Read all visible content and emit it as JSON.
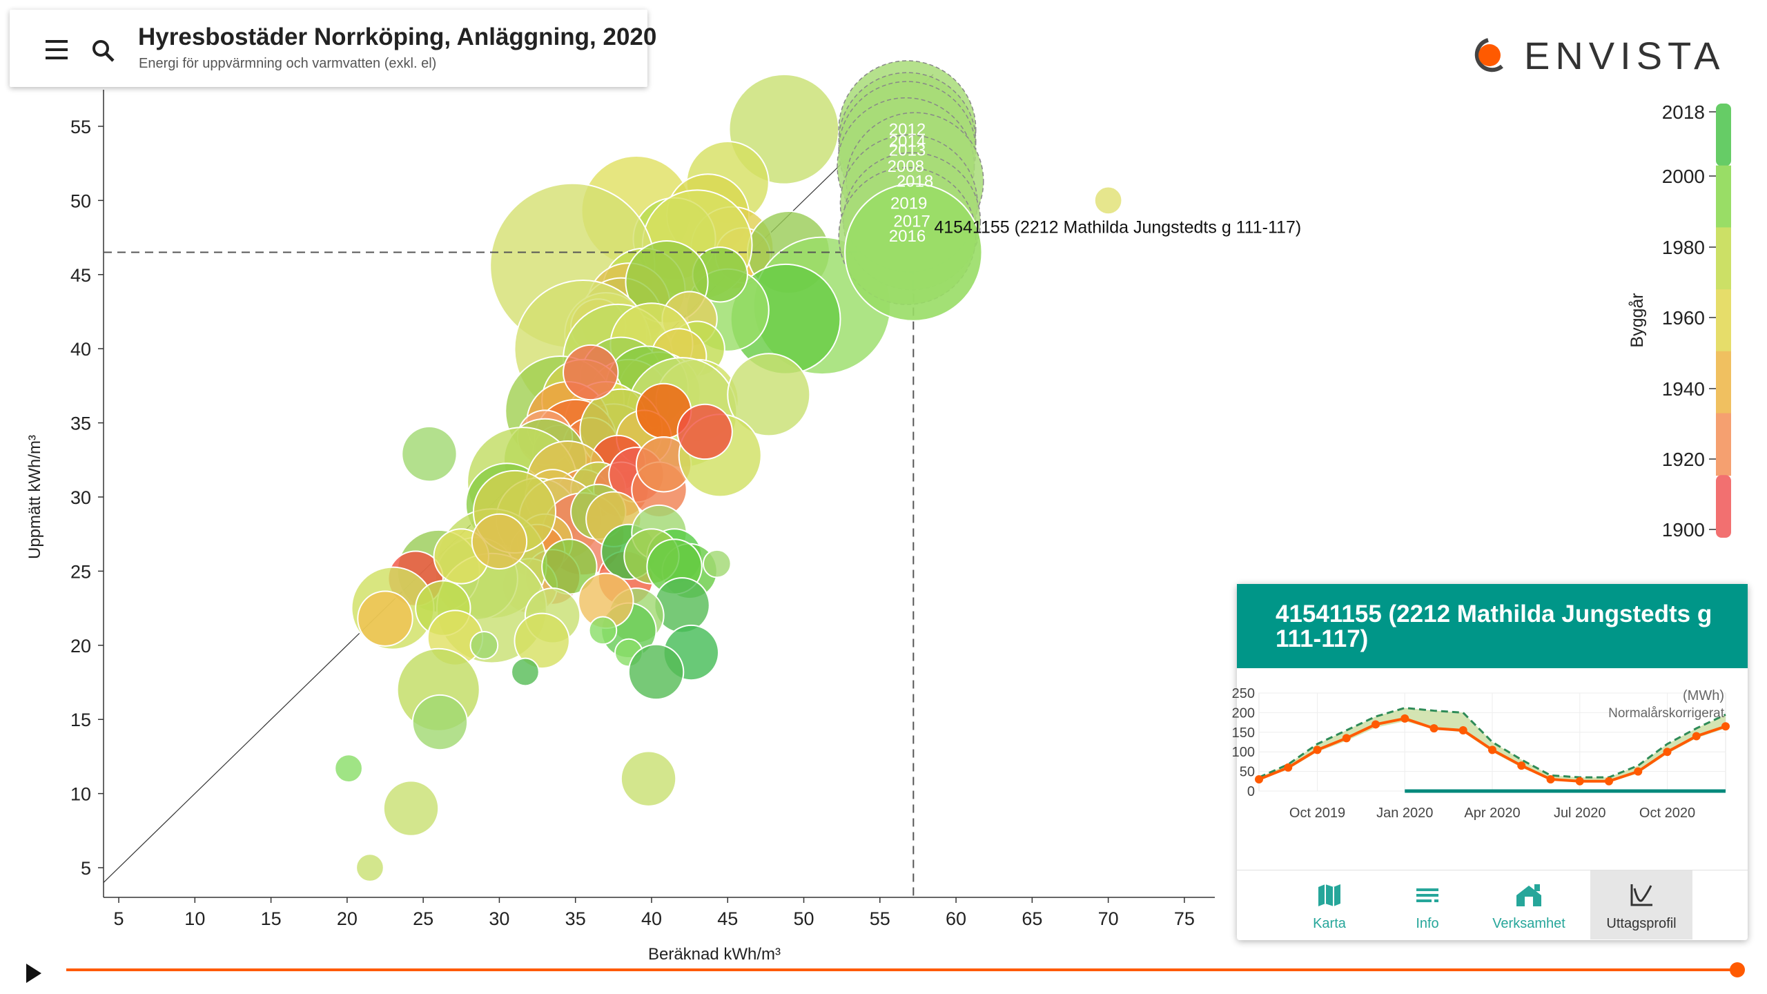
{
  "header": {
    "title": "Hyresbostäder Norrköping, Anläggning, 2020",
    "subtitle": "Energi för uppvärmning och varmvatten (exkl. el)"
  },
  "logo": {
    "text": "ENVISTA",
    "accent": "#ff5a00"
  },
  "chart_data": {
    "type": "scatter",
    "xlabel": "Beräknad kWh/m³",
    "ylabel": "Uppmätt kWh/m³",
    "xlim": [
      4,
      77
    ],
    "ylim": [
      3,
      57
    ],
    "xticks": [
      5,
      10,
      15,
      20,
      25,
      30,
      35,
      40,
      45,
      50,
      55,
      60,
      65,
      70,
      75
    ],
    "yticks": [
      5,
      10,
      15,
      20,
      25,
      30,
      35,
      40,
      45,
      50,
      55
    ],
    "diagonal": true,
    "grid": false,
    "selected": {
      "label": "41541155 (2212 Mathilda Jungstedts g 111-117)",
      "x": 57.2,
      "y": 46.5,
      "trail": [
        {
          "year": "2012",
          "x": 56.8,
          "y": 54.8,
          "r": 5
        },
        {
          "year": "2014",
          "x": 56.8,
          "y": 54.0,
          "r": 5
        },
        {
          "year": "2013",
          "x": 56.8,
          "y": 53.4,
          "r": 5
        },
        {
          "year": "2008",
          "x": 56.7,
          "y": 52.3,
          "r": 5
        },
        {
          "year": "2018",
          "x": 57.3,
          "y": 51.3,
          "r": 5
        },
        {
          "year": "2019",
          "x": 56.9,
          "y": 49.8,
          "r": 5
        },
        {
          "year": "2017",
          "x": 57.1,
          "y": 48.6,
          "r": 5
        },
        {
          "year": "2016",
          "x": 56.8,
          "y": 47.6,
          "r": 5
        }
      ]
    },
    "colorbar": {
      "label": "Byggår",
      "ticks": [
        2018,
        2000,
        1980,
        1960,
        1940,
        1920,
        1900
      ],
      "colors": [
        "#66cc66",
        "#99dd66",
        "#cce066",
        "#e6dd6a",
        "#f0c060",
        "#f5a070",
        "#f27070"
      ]
    },
    "points": [
      {
        "x": 48.7,
        "y": 54.8,
        "r": 4,
        "c": "#c8e070"
      },
      {
        "x": 45.0,
        "y": 51.2,
        "r": 3,
        "c": "#d6e060"
      },
      {
        "x": 39.0,
        "y": 49.3,
        "r": 4,
        "c": "#e0e060"
      },
      {
        "x": 43.7,
        "y": 49.0,
        "r": 3,
        "c": "#d8d850"
      },
      {
        "x": 45.3,
        "y": 46.8,
        "r": 3,
        "c": "#e0d050"
      },
      {
        "x": 46.0,
        "y": 46.3,
        "r": 2,
        "c": "#f0c050"
      },
      {
        "x": 49.0,
        "y": 46.5,
        "r": 3,
        "c": "#99cc55"
      },
      {
        "x": 41.5,
        "y": 47.4,
        "r": 3,
        "c": "#b8dc50"
      },
      {
        "x": 43.0,
        "y": 47.0,
        "r": 4,
        "c": "#d8e060"
      },
      {
        "x": 34.8,
        "y": 45.6,
        "r": 6,
        "c": "#d4e070"
      },
      {
        "x": 51.2,
        "y": 42.9,
        "r": 5,
        "c": "#99dd66"
      },
      {
        "x": 48.8,
        "y": 42.0,
        "r": 4,
        "c": "#66cc44"
      },
      {
        "x": 45.0,
        "y": 42.6,
        "r": 3,
        "c": "#99dd66"
      },
      {
        "x": 44.5,
        "y": 45.0,
        "r": 2,
        "c": "#88cc44"
      },
      {
        "x": 39.5,
        "y": 44.0,
        "r": 3,
        "c": "#c0dc50"
      },
      {
        "x": 38.5,
        "y": 43.0,
        "r": 3,
        "c": "#e0c050"
      },
      {
        "x": 38.0,
        "y": 42.0,
        "r": 3,
        "c": "#d0c050"
      },
      {
        "x": 41.0,
        "y": 44.5,
        "r": 3,
        "c": "#99cc44"
      },
      {
        "x": 37.0,
        "y": 41.0,
        "r": 3,
        "c": "#e0e050"
      },
      {
        "x": 36.5,
        "y": 41.5,
        "r": 2,
        "c": "#e0c040"
      },
      {
        "x": 42.5,
        "y": 42.0,
        "r": 2,
        "c": "#e0d060"
      },
      {
        "x": 43.0,
        "y": 40.0,
        "r": 2,
        "c": "#c0dc50"
      },
      {
        "x": 35.5,
        "y": 40.0,
        "r": 5,
        "c": "#d4e070"
      },
      {
        "x": 37.8,
        "y": 39.3,
        "r": 4,
        "c": "#c0dc60"
      },
      {
        "x": 40.0,
        "y": 40.3,
        "r": 3,
        "c": "#d8e060"
      },
      {
        "x": 41.8,
        "y": 39.5,
        "r": 2,
        "c": "#e0d050"
      },
      {
        "x": 38.0,
        "y": 38.0,
        "r": 3,
        "c": "#a0d050"
      },
      {
        "x": 40.5,
        "y": 37.0,
        "r": 3,
        "c": "#c0dc50"
      },
      {
        "x": 38.5,
        "y": 36.5,
        "r": 3,
        "c": "#e0d050"
      },
      {
        "x": 39.7,
        "y": 37.4,
        "r": 3,
        "c": "#88cc44"
      },
      {
        "x": 43.0,
        "y": 36.5,
        "r": 3,
        "c": "#d0e060"
      },
      {
        "x": 42.0,
        "y": 35.7,
        "r": 4,
        "c": "#c8e070"
      },
      {
        "x": 47.7,
        "y": 36.9,
        "r": 3,
        "c": "#c8e070"
      },
      {
        "x": 34.0,
        "y": 35.8,
        "r": 4,
        "c": "#a0d050"
      },
      {
        "x": 35.5,
        "y": 36.5,
        "r": 3,
        "c": "#d0d050"
      },
      {
        "x": 37.0,
        "y": 35.0,
        "r": 3,
        "c": "#e0e050"
      },
      {
        "x": 37.5,
        "y": 33.5,
        "r": 3,
        "c": "#e0c050"
      },
      {
        "x": 34.5,
        "y": 35.0,
        "r": 3,
        "c": "#f0a040"
      },
      {
        "x": 35.0,
        "y": 33.8,
        "r": 3,
        "c": "#f07030"
      },
      {
        "x": 34.0,
        "y": 33.0,
        "r": 2,
        "c": "#f06030"
      },
      {
        "x": 36.0,
        "y": 33.5,
        "r": 2,
        "c": "#f08040"
      },
      {
        "x": 38.0,
        "y": 34.5,
        "r": 3,
        "c": "#c0d050"
      },
      {
        "x": 39.5,
        "y": 34.0,
        "r": 2,
        "c": "#e0c050"
      },
      {
        "x": 40.8,
        "y": 35.8,
        "r": 2,
        "c": "#f06010"
      },
      {
        "x": 33.0,
        "y": 34.0,
        "r": 2,
        "c": "#f5a070"
      },
      {
        "x": 36.0,
        "y": 38.4,
        "r": 2,
        "c": "#f07050"
      },
      {
        "x": 37.8,
        "y": 32.3,
        "r": 2,
        "c": "#f05030"
      },
      {
        "x": 33.0,
        "y": 32.5,
        "r": 3,
        "c": "#a0d050"
      },
      {
        "x": 31.5,
        "y": 31.0,
        "r": 4,
        "c": "#c0dc60"
      },
      {
        "x": 30.5,
        "y": 29.5,
        "r": 3,
        "c": "#88cc44"
      },
      {
        "x": 34.5,
        "y": 31.0,
        "r": 3,
        "c": "#e0c050"
      },
      {
        "x": 35.5,
        "y": 30.0,
        "r": 2,
        "c": "#f09050"
      },
      {
        "x": 33.5,
        "y": 30.0,
        "r": 2,
        "c": "#e0c050"
      },
      {
        "x": 36.5,
        "y": 30.5,
        "r": 2,
        "c": "#c0d050"
      },
      {
        "x": 38.0,
        "y": 30.5,
        "r": 2,
        "c": "#f08050"
      },
      {
        "x": 39.0,
        "y": 31.5,
        "r": 2,
        "c": "#f06050"
      },
      {
        "x": 40.5,
        "y": 30.5,
        "r": 2,
        "c": "#f08050"
      },
      {
        "x": 40.8,
        "y": 32.2,
        "r": 2,
        "c": "#f09050"
      },
      {
        "x": 44.5,
        "y": 32.8,
        "r": 3,
        "c": "#d0e060"
      },
      {
        "x": 43.5,
        "y": 34.4,
        "r": 2,
        "c": "#f05040"
      },
      {
        "x": 32.5,
        "y": 28.5,
        "r": 3,
        "c": "#c0d050"
      },
      {
        "x": 34.0,
        "y": 28.5,
        "r": 3,
        "c": "#e0c060"
      },
      {
        "x": 35.5,
        "y": 27.5,
        "r": 3,
        "c": "#f08060"
      },
      {
        "x": 33.0,
        "y": 27.0,
        "r": 2,
        "c": "#e0c050"
      },
      {
        "x": 36.5,
        "y": 29.0,
        "r": 2,
        "c": "#a0d050"
      },
      {
        "x": 37.5,
        "y": 28.5,
        "r": 2,
        "c": "#e0c050"
      },
      {
        "x": 32.5,
        "y": 26.3,
        "r": 2,
        "c": "#f09040"
      },
      {
        "x": 33.5,
        "y": 24.6,
        "r": 2,
        "c": "#f06040"
      },
      {
        "x": 32.0,
        "y": 24.0,
        "r": 2,
        "c": "#e0c060"
      },
      {
        "x": 29.5,
        "y": 25.5,
        "r": 4,
        "c": "#c0dc60"
      },
      {
        "x": 28.5,
        "y": 24.5,
        "r": 3,
        "c": "#a0d050"
      },
      {
        "x": 26.0,
        "y": 25.0,
        "r": 3,
        "c": "#99cc55"
      },
      {
        "x": 24.5,
        "y": 24.5,
        "r": 2,
        "c": "#f05040"
      },
      {
        "x": 29.5,
        "y": 22.5,
        "r": 4,
        "c": "#c8e070"
      },
      {
        "x": 27.5,
        "y": 26.0,
        "r": 2,
        "c": "#e0e060"
      },
      {
        "x": 23.0,
        "y": 22.5,
        "r": 3,
        "c": "#d0e060"
      },
      {
        "x": 22.5,
        "y": 21.8,
        "r": 2,
        "c": "#f0c050"
      },
      {
        "x": 26.3,
        "y": 22.5,
        "r": 2,
        "c": "#c0dc50"
      },
      {
        "x": 27.1,
        "y": 20.5,
        "r": 2,
        "c": "#e0e060"
      },
      {
        "x": 31.0,
        "y": 29.0,
        "r": 3,
        "c": "#d0d050"
      },
      {
        "x": 30.0,
        "y": 27.0,
        "r": 2,
        "c": "#e0c050"
      },
      {
        "x": 34.6,
        "y": 25.3,
        "r": 2,
        "c": "#88cc44"
      },
      {
        "x": 33.5,
        "y": 22.0,
        "r": 2,
        "c": "#c8e070"
      },
      {
        "x": 38.3,
        "y": 24.5,
        "r": 2,
        "c": "#f06040"
      },
      {
        "x": 38.5,
        "y": 26.3,
        "r": 2,
        "c": "#44bb44"
      },
      {
        "x": 40.5,
        "y": 27.6,
        "r": 2,
        "c": "#a0d870"
      },
      {
        "x": 41.5,
        "y": 26.0,
        "r": 2,
        "c": "#55cc44"
      },
      {
        "x": 42.5,
        "y": 25.0,
        "r": 2,
        "c": "#66cc44"
      },
      {
        "x": 40.0,
        "y": 26.0,
        "r": 2,
        "c": "#a0d050"
      },
      {
        "x": 41.5,
        "y": 25.3,
        "r": 2,
        "c": "#66cc44"
      },
      {
        "x": 44.3,
        "y": 25.5,
        "r": 1,
        "c": "#a0d870"
      },
      {
        "x": 42.0,
        "y": 22.7,
        "r": 2,
        "c": "#55bb55"
      },
      {
        "x": 39.0,
        "y": 22.0,
        "r": 2,
        "c": "#a0d870"
      },
      {
        "x": 38.5,
        "y": 21.0,
        "r": 2,
        "c": "#66cc55"
      },
      {
        "x": 37.0,
        "y": 23.0,
        "r": 2,
        "c": "#f0c060"
      },
      {
        "x": 36.8,
        "y": 21.0,
        "r": 1,
        "c": "#88dd66"
      },
      {
        "x": 38.5,
        "y": 19.5,
        "r": 1,
        "c": "#88dd66"
      },
      {
        "x": 42.6,
        "y": 19.5,
        "r": 2,
        "c": "#44bb55"
      },
      {
        "x": 40.3,
        "y": 18.2,
        "r": 2,
        "c": "#55bb55"
      },
      {
        "x": 32.8,
        "y": 20.3,
        "r": 2,
        "c": "#d6e060"
      },
      {
        "x": 31.7,
        "y": 18.2,
        "r": 1,
        "c": "#55bb55"
      },
      {
        "x": 29.0,
        "y": 20.0,
        "r": 1,
        "c": "#a0d870"
      },
      {
        "x": 26.0,
        "y": 17.0,
        "r": 3,
        "c": "#c0dc60"
      },
      {
        "x": 26.1,
        "y": 14.8,
        "r": 2,
        "c": "#a0d870"
      },
      {
        "x": 20.1,
        "y": 11.7,
        "r": 1,
        "c": "#88dd66"
      },
      {
        "x": 24.2,
        "y": 9.0,
        "r": 2,
        "c": "#c8e070"
      },
      {
        "x": 39.8,
        "y": 11.0,
        "r": 2,
        "c": "#c8e070"
      },
      {
        "x": 21.5,
        "y": 5.0,
        "r": 1,
        "c": "#c8e070"
      },
      {
        "x": 25.4,
        "y": 32.9,
        "r": 2,
        "c": "#a0d870"
      },
      {
        "x": 70.0,
        "y": 50.0,
        "r": 1,
        "c": "#e0e070"
      }
    ]
  },
  "panel": {
    "title": "41541155 (2212 Mathilda Jungstedts g 111-117)",
    "unit": "(MWh)",
    "note": "Normalårskorrigerat",
    "yticks": [
      0,
      50,
      100,
      150,
      200,
      250
    ],
    "xticks": [
      "Oct 2019",
      "Jan 2020",
      "Apr 2020",
      "Jul 2020",
      "Oct 2020"
    ],
    "series_months": [
      "Aug 2019",
      "Sep 2019",
      "Oct 2019",
      "Nov 2019",
      "Dec 2019",
      "Jan 2020",
      "Feb 2020",
      "Mar 2020",
      "Apr 2020",
      "May 2020",
      "Jun 2020",
      "Jul 2020",
      "Aug 2020",
      "Sep 2020",
      "Oct 2020",
      "Nov 2020",
      "Dec 2020"
    ],
    "measured": [
      30,
      60,
      105,
      135,
      170,
      185,
      160,
      155,
      105,
      65,
      30,
      25,
      25,
      50,
      100,
      140,
      165
    ],
    "normal_upper": [
      35,
      68,
      120,
      155,
      190,
      212,
      205,
      200,
      125,
      80,
      40,
      35,
      35,
      65,
      120,
      160,
      195
    ],
    "normal_lower": [
      28,
      55,
      100,
      128,
      162,
      178,
      158,
      150,
      100,
      60,
      28,
      22,
      22,
      45,
      95,
      135,
      160
    ],
    "colors": {
      "measured": "#ff5a00",
      "normal": "#2e8b57",
      "band": "#c9dda0",
      "baseline": "#00897b"
    }
  },
  "nav": {
    "karta": "Karta",
    "info": "Info",
    "verksamhet": "Verksamhet",
    "uttagsprofil": "Uttagsprofil"
  },
  "colors": {
    "accent": "#009688",
    "timeline": "#ff5a00"
  }
}
